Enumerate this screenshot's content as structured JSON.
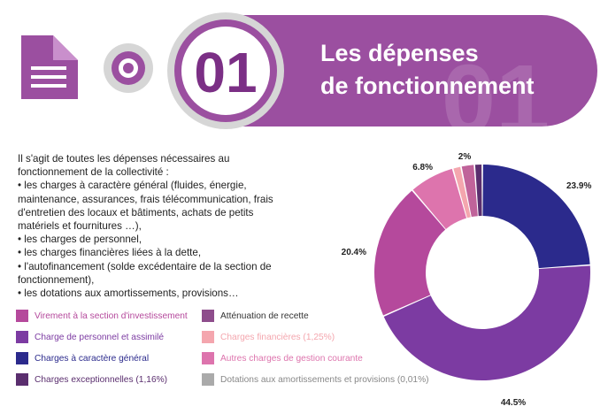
{
  "header": {
    "number": "01",
    "watermark": "01",
    "title_line1": "Les dépenses",
    "title_line2": "de fonctionnement",
    "colors": {
      "primary": "#9b4fa0",
      "deep": "#7b2f85",
      "ring": "#d6d6d6"
    },
    "icons": {
      "document": "document-icon",
      "target": "target-icon"
    }
  },
  "body": {
    "lines": [
      "Il s'agit de toutes les dépenses nécessaires au",
      "fonctionnement de la collectivité :",
      "• les charges à caractère général (fluides, énergie,",
      "maintenance, assurances, frais télécommunication, frais",
      "d'entretien des locaux et bâtiments, achats de petits",
      "matériels et fournitures …),",
      "• les charges de personnel,",
      "• les charges financières liées à la dette,",
      "• l'autofinancement (solde excédentaire de la section de",
      "fonctionnement),",
      "• les dotations aux amortissements, provisions…"
    ]
  },
  "chart_data": {
    "type": "pie",
    "variant": "donut",
    "start_angle_deg": 0,
    "direction": "clockwise",
    "slices": [
      {
        "name": "Charges à caractère général",
        "value": 23.9,
        "color": "#2b2a8c",
        "label": "23.9%"
      },
      {
        "name": "Charge de personnel et assimilé",
        "value": 44.5,
        "color": "#7c3ba2",
        "label": "44.5%"
      },
      {
        "name": "Virement à la section d'investissement",
        "value": 20.4,
        "color": "#b5499c",
        "label": "20.4%"
      },
      {
        "name": "Autres charges de gestion courante",
        "value": 6.8,
        "color": "#dd74ad",
        "label": "6.8%"
      },
      {
        "name": "Charges financières (1,25%)",
        "value": 1.25,
        "color": "#f4a6ae",
        "label": ""
      },
      {
        "name": "Atténuation de recette",
        "value": 2.0,
        "color": "#c0639a",
        "label": "2%"
      },
      {
        "name": "Charges exceptionnelles (1,16%)",
        "value": 1.16,
        "color": "#5a2e6e",
        "label": ""
      },
      {
        "name": "Dotations aux amortissements et provisions (0,01%)",
        "value": 0.01,
        "color": "#aaaaaa",
        "label": ""
      }
    ]
  },
  "legend": {
    "items": [
      {
        "label": "Virement à la section d'investissement",
        "color": "#b5499c",
        "text_color": "#b5499c"
      },
      {
        "label": "Atténuation de recette",
        "color": "#8e4d8c",
        "text_color": "#333333"
      },
      {
        "label": "Charge de personnel et assimilé",
        "color": "#7c3ba2",
        "text_color": "#7c3ba2"
      },
      {
        "label": "Charges financières (1,25%)",
        "color": "#f4a6ae",
        "text_color": "#f4a6ae"
      },
      {
        "label": "Charges à caractère général",
        "color": "#2b2a8c",
        "text_color": "#2b2a8c"
      },
      {
        "label": "Autres charges de gestion courante",
        "color": "#dd74ad",
        "text_color": "#dd74ad"
      },
      {
        "label": "Charges exceptionnelles  (1,16%)",
        "color": "#5a2e6e",
        "text_color": "#5a2e6e"
      },
      {
        "label": "Dotations aux amortissements et provisions (0,01%)",
        "color": "#aaaaaa",
        "text_color": "#888888"
      }
    ]
  }
}
